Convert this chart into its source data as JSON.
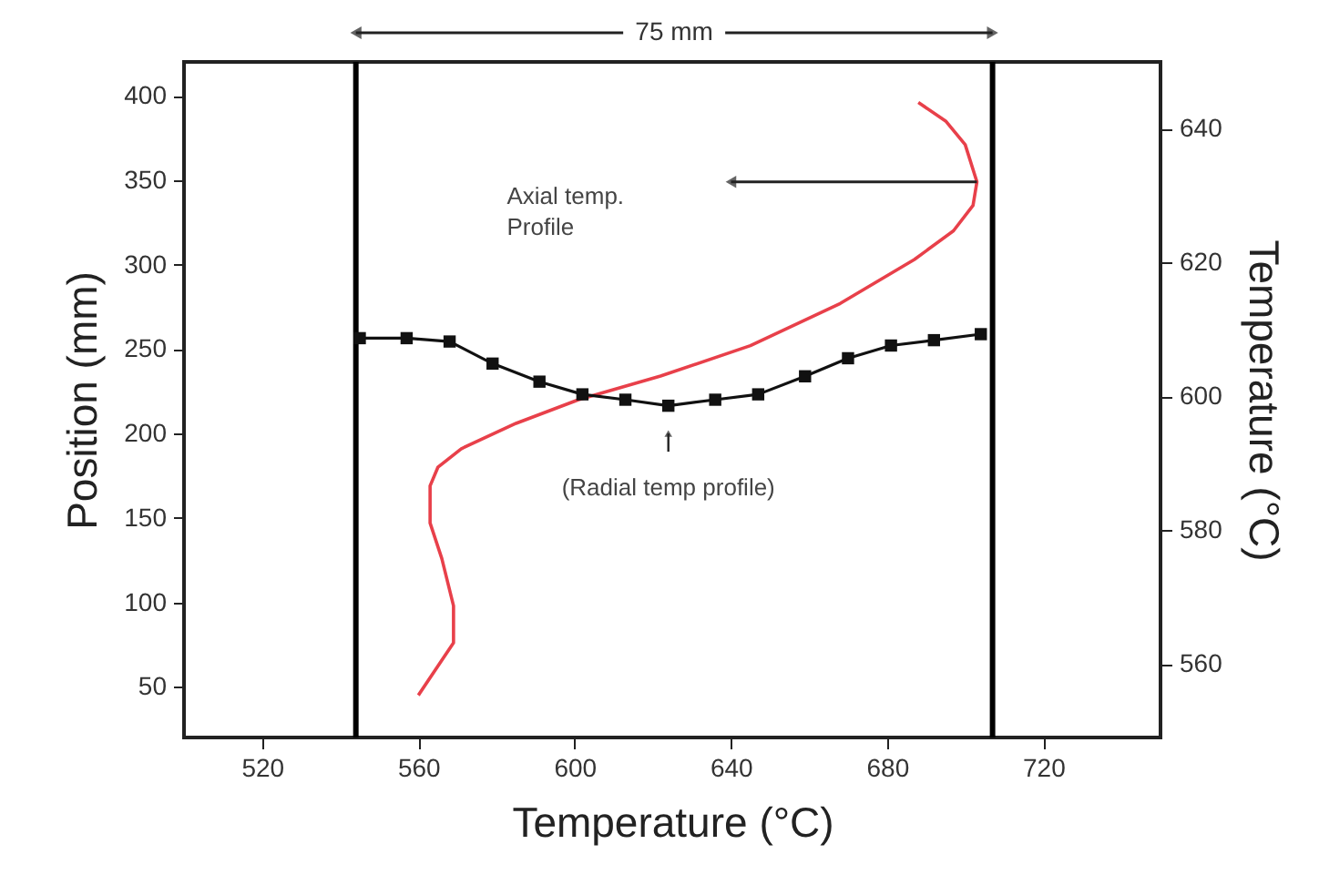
{
  "chart_data": {
    "type": "line",
    "xlabel": "Temperature (°C)",
    "ylabel": "Position (mm)",
    "y2label": "Temperature (°C)",
    "xlim": [
      500,
      750
    ],
    "xticks": [
      520,
      560,
      600,
      640,
      680,
      720
    ],
    "ylim": [
      20,
      420
    ],
    "yticks": [
      50,
      100,
      150,
      200,
      250,
      300,
      350,
      400
    ],
    "y2lim": [
      549,
      650
    ],
    "y2ticks": [
      560,
      580,
      600,
      620,
      640
    ],
    "grid": false,
    "series": [
      {
        "color": "#e8404a",
        "marker": "none",
        "x": [
          560,
          569,
          569,
          566,
          563,
          563,
          565,
          571,
          585,
          601,
          622,
          645,
          668,
          687,
          697,
          702,
          703,
          700,
          695,
          688
        ],
        "values": [
          45,
          76,
          98,
          126,
          147,
          169,
          180,
          191,
          206,
          220,
          234,
          252,
          277,
          303,
          320,
          335,
          349,
          371,
          385,
          396
        ]
      },
      {
        "axis": "y2",
        "color": "#111111",
        "marker": "square",
        "x": [
          545,
          557,
          568,
          579,
          591,
          602,
          613,
          624,
          636,
          647,
          659,
          670,
          681,
          692,
          704
        ],
        "values": [
          608.7,
          608.7,
          608.2,
          604.9,
          602.2,
          600.3,
          599.5,
          598.6,
          599.5,
          600.3,
          603.0,
          605.7,
          607.6,
          608.4,
          609.3
        ]
      }
    ],
    "ref_lines": [
      {
        "axis": "x",
        "value": 544,
        "color": "#000000"
      },
      {
        "axis": "x",
        "value": 707,
        "color": "#000000"
      }
    ],
    "annotations": [
      "75 mm",
      "Axial temp.\nProfile",
      {
        "text": "(Radial temp profile)",
        "x": 624,
        "y": 200
      }
    ]
  }
}
